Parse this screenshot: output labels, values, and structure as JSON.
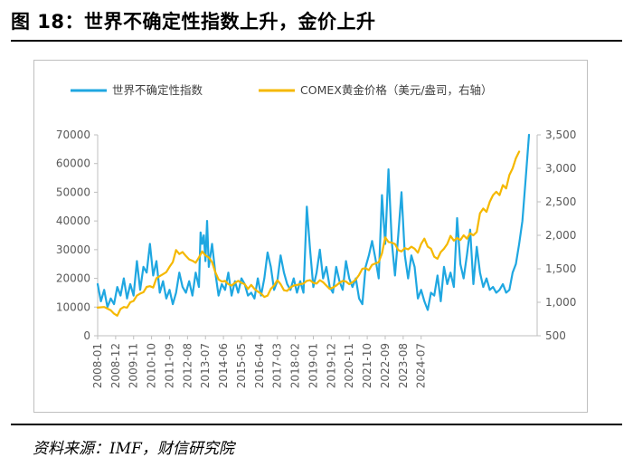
{
  "header": {
    "title": "图 18：世界不确定性指数上升，金价上升"
  },
  "footer": {
    "source": "资料来源：IMF，财信研究院"
  },
  "colors": {
    "uncertainty": "#1fa7e1",
    "gold": "#f5b800"
  },
  "chart_data": {
    "type": "line",
    "title": "",
    "legend": {
      "position": "top",
      "entries": [
        "世界不确定性指数",
        "COMEX黄金价格（美元/盎司，右轴）"
      ]
    },
    "x_start": "2008-01",
    "x_end": "2025-06",
    "x_tick_labels": [
      "2008-01",
      "2008-12",
      "2009-11",
      "2010-10",
      "2011-09",
      "2012-08",
      "2013-07",
      "2014-06",
      "2015-05",
      "2016-04",
      "2017-03",
      "2018-02",
      "2019-01",
      "2019-12",
      "2020-11",
      "2021-10",
      "2022-09",
      "2023-08",
      "2024-07"
    ],
    "y_left": {
      "min": 0,
      "max": 70000,
      "ticks": [
        0,
        10000,
        20000,
        30000,
        40000,
        50000,
        60000,
        70000
      ]
    },
    "y_right": {
      "min": 500,
      "max": 3500,
      "ticks": [
        "500",
        "1,000",
        "1,500",
        "2,000",
        "2,500",
        "3,000",
        "3,500"
      ],
      "tick_values": [
        500,
        1000,
        1500,
        2000,
        2500,
        3000,
        3500
      ]
    },
    "series": [
      {
        "name": "世界不确定性指数",
        "axis": "left",
        "points": [
          [
            0,
            18000
          ],
          [
            2,
            12000
          ],
          [
            4,
            16000
          ],
          [
            6,
            10000
          ],
          [
            8,
            13000
          ],
          [
            10,
            11000
          ],
          [
            12,
            17000
          ],
          [
            14,
            14000
          ],
          [
            16,
            20000
          ],
          [
            18,
            13000
          ],
          [
            20,
            18000
          ],
          [
            22,
            14000
          ],
          [
            24,
            26000
          ],
          [
            26,
            16000
          ],
          [
            28,
            24000
          ],
          [
            30,
            22000
          ],
          [
            32,
            32000
          ],
          [
            34,
            21000
          ],
          [
            36,
            26000
          ],
          [
            38,
            15000
          ],
          [
            40,
            19000
          ],
          [
            42,
            13000
          ],
          [
            44,
            16000
          ],
          [
            46,
            11000
          ],
          [
            48,
            15000
          ],
          [
            50,
            22000
          ],
          [
            52,
            17000
          ],
          [
            54,
            15000
          ],
          [
            56,
            19000
          ],
          [
            58,
            14000
          ],
          [
            60,
            22000
          ],
          [
            62,
            17000
          ],
          [
            63,
            36000
          ],
          [
            64,
            32000
          ],
          [
            65,
            35000
          ],
          [
            66,
            26000
          ],
          [
            67,
            40000
          ],
          [
            68,
            24000
          ],
          [
            70,
            32000
          ],
          [
            72,
            22000
          ],
          [
            74,
            14000
          ],
          [
            76,
            18000
          ],
          [
            78,
            16000
          ],
          [
            80,
            22000
          ],
          [
            82,
            14000
          ],
          [
            84,
            19000
          ],
          [
            86,
            15000
          ],
          [
            88,
            20000
          ],
          [
            90,
            18000
          ],
          [
            92,
            14000
          ],
          [
            94,
            15000
          ],
          [
            96,
            13000
          ],
          [
            98,
            20000
          ],
          [
            100,
            14000
          ],
          [
            102,
            20000
          ],
          [
            104,
            29000
          ],
          [
            106,
            24000
          ],
          [
            108,
            16000
          ],
          [
            110,
            19000
          ],
          [
            112,
            28000
          ],
          [
            114,
            22000
          ],
          [
            116,
            18000
          ],
          [
            118,
            16000
          ],
          [
            120,
            20000
          ],
          [
            122,
            15000
          ],
          [
            124,
            19000
          ],
          [
            126,
            15000
          ],
          [
            128,
            45000
          ],
          [
            130,
            30000
          ],
          [
            132,
            17000
          ],
          [
            134,
            22000
          ],
          [
            136,
            30000
          ],
          [
            138,
            20000
          ],
          [
            140,
            24000
          ],
          [
            142,
            17000
          ],
          [
            144,
            15000
          ],
          [
            146,
            24000
          ],
          [
            148,
            19000
          ],
          [
            150,
            16000
          ],
          [
            152,
            26000
          ],
          [
            154,
            20000
          ],
          [
            156,
            17000
          ],
          [
            158,
            20000
          ],
          [
            160,
            13000
          ],
          [
            162,
            11000
          ],
          [
            164,
            24000
          ],
          [
            166,
            28000
          ],
          [
            168,
            33000
          ],
          [
            170,
            27000
          ],
          [
            172,
            20000
          ],
          [
            174,
            49000
          ],
          [
            176,
            32000
          ],
          [
            178,
            58000
          ],
          [
            180,
            33000
          ],
          [
            182,
            21000
          ],
          [
            184,
            35000
          ],
          [
            186,
            50000
          ],
          [
            188,
            28000
          ],
          [
            190,
            20000
          ],
          [
            192,
            28000
          ],
          [
            194,
            24000
          ],
          [
            196,
            13000
          ],
          [
            198,
            16000
          ],
          [
            200,
            12000
          ],
          [
            202,
            9000
          ],
          [
            204,
            15000
          ],
          [
            206,
            14000
          ],
          [
            208,
            21000
          ],
          [
            210,
            12000
          ],
          [
            212,
            24000
          ],
          [
            214,
            18000
          ],
          [
            216,
            22000
          ],
          [
            218,
            17000
          ],
          [
            220,
            41000
          ],
          [
            222,
            25000
          ],
          [
            224,
            20000
          ],
          [
            226,
            28000
          ],
          [
            228,
            37000
          ],
          [
            230,
            18000
          ],
          [
            232,
            31000
          ],
          [
            234,
            22000
          ],
          [
            236,
            17000
          ],
          [
            238,
            20000
          ],
          [
            240,
            16000
          ],
          [
            242,
            17000
          ],
          [
            244,
            15000
          ],
          [
            246,
            16000
          ],
          [
            248,
            18000
          ],
          [
            250,
            15000
          ],
          [
            252,
            16000
          ],
          [
            254,
            22000
          ],
          [
            256,
            25000
          ],
          [
            258,
            32000
          ],
          [
            260,
            40000
          ],
          [
            262,
            55000
          ],
          [
            264,
            70000
          ]
        ]
      },
      {
        "name": "COMEX黄金价格（美元/盎司，右轴）",
        "axis": "right",
        "points": [
          [
            0,
            920
          ],
          [
            4,
            930
          ],
          [
            8,
            880
          ],
          [
            10,
            830
          ],
          [
            12,
            800
          ],
          [
            14,
            900
          ],
          [
            16,
            930
          ],
          [
            18,
            920
          ],
          [
            20,
            1000
          ],
          [
            22,
            1020
          ],
          [
            24,
            1100
          ],
          [
            26,
            1130
          ],
          [
            28,
            1150
          ],
          [
            30,
            1230
          ],
          [
            32,
            1240
          ],
          [
            34,
            1220
          ],
          [
            36,
            1360
          ],
          [
            38,
            1390
          ],
          [
            40,
            1420
          ],
          [
            42,
            1450
          ],
          [
            44,
            1530
          ],
          [
            46,
            1600
          ],
          [
            48,
            1780
          ],
          [
            50,
            1720
          ],
          [
            52,
            1750
          ],
          [
            54,
            1690
          ],
          [
            56,
            1640
          ],
          [
            58,
            1620
          ],
          [
            60,
            1590
          ],
          [
            62,
            1670
          ],
          [
            64,
            1760
          ],
          [
            66,
            1700
          ],
          [
            68,
            1670
          ],
          [
            70,
            1600
          ],
          [
            72,
            1450
          ],
          [
            74,
            1340
          ],
          [
            76,
            1310
          ],
          [
            78,
            1320
          ],
          [
            80,
            1270
          ],
          [
            82,
            1250
          ],
          [
            84,
            1290
          ],
          [
            86,
            1320
          ],
          [
            88,
            1290
          ],
          [
            90,
            1270
          ],
          [
            92,
            1200
          ],
          [
            94,
            1260
          ],
          [
            96,
            1200
          ],
          [
            98,
            1160
          ],
          [
            100,
            1130
          ],
          [
            102,
            1080
          ],
          [
            104,
            1100
          ],
          [
            106,
            1200
          ],
          [
            108,
            1250
          ],
          [
            110,
            1330
          ],
          [
            112,
            1270
          ],
          [
            114,
            1180
          ],
          [
            116,
            1170
          ],
          [
            118,
            1220
          ],
          [
            120,
            1250
          ],
          [
            122,
            1260
          ],
          [
            124,
            1270
          ],
          [
            126,
            1280
          ],
          [
            128,
            1320
          ],
          [
            130,
            1330
          ],
          [
            132,
            1290
          ],
          [
            134,
            1280
          ],
          [
            136,
            1330
          ],
          [
            138,
            1300
          ],
          [
            140,
            1250
          ],
          [
            142,
            1200
          ],
          [
            144,
            1220
          ],
          [
            146,
            1250
          ],
          [
            148,
            1290
          ],
          [
            150,
            1320
          ],
          [
            152,
            1310
          ],
          [
            154,
            1270
          ],
          [
            156,
            1300
          ],
          [
            158,
            1340
          ],
          [
            160,
            1410
          ],
          [
            162,
            1500
          ],
          [
            164,
            1510
          ],
          [
            166,
            1480
          ],
          [
            168,
            1560
          ],
          [
            170,
            1580
          ],
          [
            172,
            1600
          ],
          [
            174,
            1730
          ],
          [
            176,
            1970
          ],
          [
            178,
            1900
          ],
          [
            180,
            1890
          ],
          [
            182,
            1870
          ],
          [
            184,
            1780
          ],
          [
            186,
            1760
          ],
          [
            188,
            1810
          ],
          [
            190,
            1790
          ],
          [
            192,
            1830
          ],
          [
            194,
            1800
          ],
          [
            196,
            1740
          ],
          [
            198,
            1870
          ],
          [
            200,
            1950
          ],
          [
            202,
            1830
          ],
          [
            204,
            1800
          ],
          [
            206,
            1680
          ],
          [
            208,
            1650
          ],
          [
            210,
            1750
          ],
          [
            212,
            1800
          ],
          [
            214,
            1870
          ],
          [
            216,
            1990
          ],
          [
            218,
            1920
          ],
          [
            220,
            1960
          ],
          [
            222,
            1930
          ],
          [
            224,
            2000
          ],
          [
            226,
            1950
          ],
          [
            228,
            2030
          ],
          [
            230,
            2000
          ],
          [
            232,
            2050
          ],
          [
            234,
            2330
          ],
          [
            236,
            2400
          ],
          [
            238,
            2350
          ],
          [
            240,
            2500
          ],
          [
            242,
            2600
          ],
          [
            244,
            2650
          ],
          [
            246,
            2600
          ],
          [
            248,
            2750
          ],
          [
            250,
            2700
          ],
          [
            252,
            2900
          ],
          [
            254,
            3000
          ],
          [
            256,
            3150
          ],
          [
            258,
            3250
          ]
        ]
      }
    ]
  }
}
